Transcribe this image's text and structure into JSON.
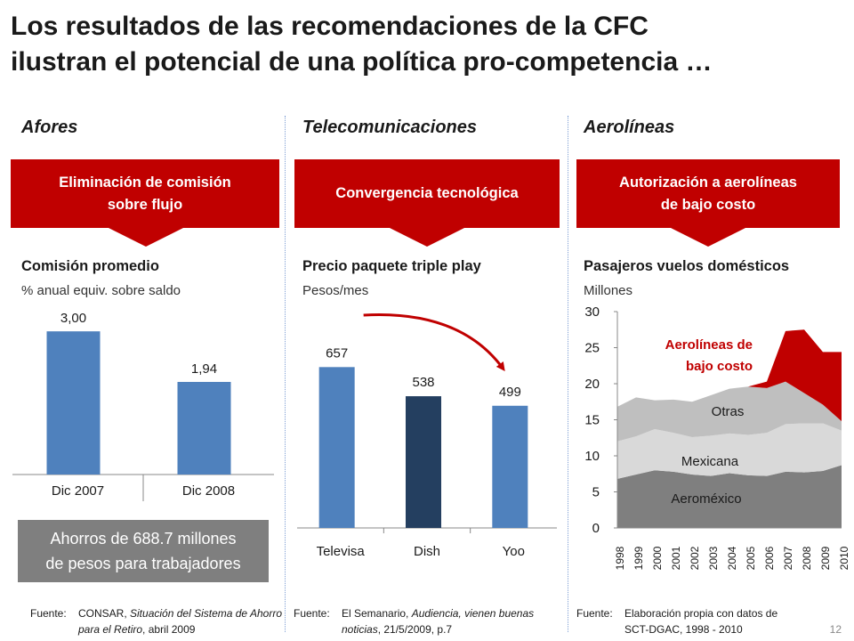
{
  "title": {
    "line1": "Los resultados de las recomendaciones de la CFC",
    "line2": "ilustran el potencial de una política pro-competencia …"
  },
  "columns": [
    {
      "heading": "Afores",
      "box_line1": "Eliminación de comisión",
      "box_line2": "sobre flujo",
      "subtitle": "Comisión promedio",
      "unit": "% anual equiv. sobre saldo",
      "source_label": "Fuente:",
      "source_line1": "CONSAR, ",
      "source_italic": "Situación del Sistema de Ahorro para el Retiro",
      "source_line2": ", abril 2009"
    },
    {
      "heading": "Telecomunicaciones",
      "box_line1": "Convergencia tecnológica",
      "box_line2": "",
      "subtitle": "Precio paquete triple play",
      "unit": "Pesos/mes",
      "source_label": "Fuente:",
      "source_line1": "El Semanario, ",
      "source_italic": "Audiencia, vienen buenas noticias",
      "source_line2": ", 21/5/2009, p.7"
    },
    {
      "heading": "Aerolíneas",
      "box_line1": "Autorización a aerolíneas",
      "box_line2": "de bajo costo",
      "subtitle": "Pasajeros vuelos domésticos",
      "unit": "Millones",
      "source_label": "Fuente:",
      "source_line1": "Elaboración propia con datos de",
      "source_italic": "",
      "source_line2": "SCT-DGAC, 1998 - 2010"
    }
  ],
  "savings": {
    "line1": "Ahorros de 688.7 millones",
    "line2": "de pesos para trabajadores"
  },
  "page_number": "12",
  "colors": {
    "red": "#c00000",
    "blue": "#4f81bd",
    "navy": "#243f60",
    "gray_box": "#7f7f7f"
  },
  "chart_data": [
    {
      "type": "bar",
      "categories": [
        "Dic 2007",
        "Dic 2008"
      ],
      "values": [
        3.0,
        1.94
      ],
      "value_labels": [
        "3,00",
        "1,94"
      ],
      "ylim": [
        0,
        3.6
      ]
    },
    {
      "type": "bar",
      "categories": [
        "Televisa",
        "Dish",
        "Yoo"
      ],
      "values": [
        657,
        538,
        499
      ],
      "value_labels": [
        "657",
        "538",
        "499"
      ],
      "bar_colors": [
        "#4f81bd",
        "#243f60",
        "#4f81bd"
      ],
      "ylim": [
        0,
        800
      ]
    },
    {
      "type": "area",
      "x": [
        "1998",
        "1999",
        "2000",
        "2001",
        "2002",
        "2003",
        "2004",
        "2005",
        "2006",
        "2007",
        "2008",
        "2009",
        "2010"
      ],
      "yticks": [
        "0",
        "5",
        "10",
        "15",
        "20",
        "25",
        "30"
      ],
      "ylim": [
        0,
        30
      ],
      "series": [
        {
          "name": "Aeroméxico",
          "values": [
            6.8,
            7.4,
            8.0,
            7.8,
            7.4,
            7.2,
            7.6,
            7.3,
            7.2,
            7.8,
            7.7,
            7.9,
            8.7
          ],
          "color": "#7f7f7f"
        },
        {
          "name": "Mexicana",
          "values": [
            5.2,
            5.3,
            5.7,
            5.4,
            5.2,
            5.6,
            5.5,
            5.6,
            6.0,
            6.6,
            6.8,
            6.6,
            4.8
          ],
          "color": "#d9d9d9"
        },
        {
          "name": "Otras",
          "values": [
            4.8,
            5.4,
            4.0,
            4.6,
            4.9,
            5.6,
            6.2,
            6.7,
            6.2,
            5.9,
            4.2,
            2.6,
            1.3
          ],
          "color": "#bfbfbf"
        },
        {
          "name": "Aerolíneas de bajo costo",
          "values": [
            0,
            0,
            0,
            0,
            0,
            0,
            0,
            0,
            0.9,
            7.0,
            8.8,
            7.3,
            9.6
          ],
          "color": "#c00000"
        }
      ],
      "annotation_line1": "Aerolíneas de",
      "annotation_line2": "bajo costo"
    }
  ]
}
